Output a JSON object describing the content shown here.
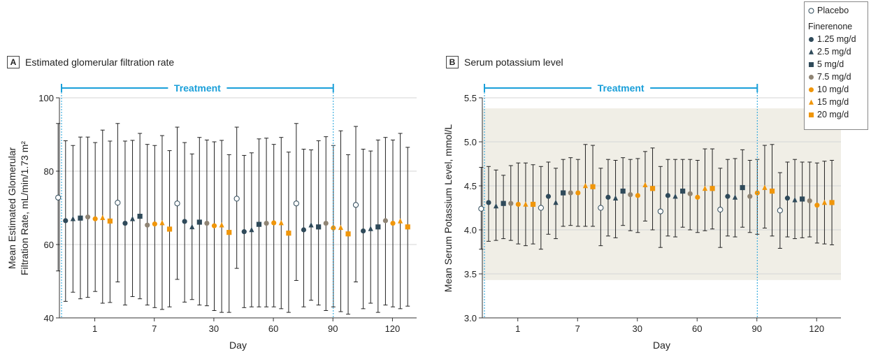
{
  "legend": {
    "placebo": "Placebo",
    "group_title": "Finerenone",
    "items": [
      "1.25 mg/d",
      "2.5 mg/d",
      "5 mg/d",
      "7.5 mg/d",
      "10 mg/d",
      "15 mg/d",
      "20 mg/d"
    ]
  },
  "colors": {
    "placebo": "#ffffff",
    "dark": "#2f4a5a",
    "gray": "#8f8474",
    "orange": "#f0960a",
    "treatment": "#1a9fd9",
    "shade": "#f0eee6"
  },
  "chart_data": [
    {
      "type": "scatter",
      "panel": "A",
      "title": "Estimated glomerular filtration rate",
      "xlabel": "Day",
      "ylabel": "Mean Estimated Glomerular Filtration Rate, mL/min/1.73 m²",
      "ylim": [
        40,
        100
      ],
      "yticks": [
        40,
        60,
        80,
        100
      ],
      "categories": [
        "1",
        "7",
        "30",
        "60",
        "90",
        "120"
      ],
      "treatment_label": "Treatment",
      "grid": true,
      "series": [
        {
          "name": "Placebo",
          "marker": "open-circle",
          "mean": [
            72.8,
            71.4,
            71.2,
            72.5,
            71.2,
            70.8
          ],
          "lower": [
            52.8,
            49.8,
            50.5,
            53.5,
            50.2,
            49.8
          ],
          "upper": [
            93,
            93,
            92,
            92,
            93,
            92.2
          ]
        },
        {
          "name": "1.25 mg/d",
          "marker": "circle",
          "mean": [
            66.5,
            65.8,
            66.3,
            63.5,
            64.0,
            63.7
          ],
          "lower": [
            44.5,
            43.5,
            44.3,
            42.8,
            43.0,
            42.5
          ],
          "upper": [
            88.3,
            88.2,
            87.8,
            84.3,
            86.0,
            86.0
          ]
        },
        {
          "name": "2.5 mg/d",
          "marker": "triangle",
          "mean": [
            67.0,
            67.0,
            64.8,
            64.0,
            65.3,
            64.3
          ],
          "lower": [
            47.0,
            45.8,
            45.0,
            43.0,
            44.8,
            44.0
          ],
          "upper": [
            87.0,
            88.4,
            84.7,
            85.0,
            85.8,
            85.5
          ]
        },
        {
          "name": "5 mg/d",
          "marker": "square",
          "mean": [
            67.2,
            67.7,
            66.1,
            65.5,
            64.8,
            64.8
          ],
          "lower": [
            45.2,
            45.2,
            43.5,
            43.0,
            43.5,
            41.5
          ],
          "upper": [
            89.3,
            90.3,
            89.2,
            88.8,
            88.3,
            88.5
          ]
        },
        {
          "name": "7.5 mg/d",
          "marker": "circle-gray",
          "mean": [
            67.5,
            65.3,
            65.8,
            65.8,
            65.8,
            66.5
          ],
          "lower": [
            45.6,
            43.5,
            43.3,
            43.0,
            42.0,
            43.5
          ],
          "upper": [
            89.3,
            87.3,
            88.5,
            89.0,
            89.4,
            89.2
          ]
        },
        {
          "name": "10 mg/d",
          "marker": "circle-orange",
          "mean": [
            67.0,
            65.6,
            65.1,
            65.9,
            64.5,
            65.8
          ],
          "lower": [
            47.2,
            42.8,
            42.0,
            43.0,
            43.0,
            43.0
          ],
          "upper": [
            87.8,
            87.0,
            88.0,
            87.3,
            87.0,
            88.5
          ]
        },
        {
          "name": "15 mg/d",
          "marker": "triangle-orange",
          "mean": [
            67.3,
            65.9,
            65.3,
            65.9,
            64.6,
            66.4
          ],
          "lower": [
            44.0,
            42.3,
            41.5,
            42.5,
            41.7,
            42.5
          ],
          "upper": [
            91.2,
            89.7,
            88.4,
            89.2,
            91.0,
            90.3
          ]
        },
        {
          "name": "20 mg/d",
          "marker": "square-orange",
          "mean": [
            66.4,
            64.2,
            63.3,
            63.1,
            62.9,
            64.8
          ],
          "lower": [
            44.2,
            43.0,
            41.5,
            41.5,
            41.0,
            43.2
          ],
          "upper": [
            88.2,
            85.6,
            84.5,
            85.2,
            84.5,
            86.5
          ]
        }
      ]
    },
    {
      "type": "scatter",
      "panel": "B",
      "title": "Serum potassium level",
      "xlabel": "Day",
      "ylabel": "Mean Serum Potassium Level, mmol/L",
      "ylim": [
        3.0,
        5.5
      ],
      "yticks": [
        3.0,
        3.5,
        4.0,
        4.5,
        5.0,
        5.5
      ],
      "shaded_range": [
        3.43,
        5.38
      ],
      "categories": [
        "1",
        "7",
        "30",
        "60",
        "90",
        "120"
      ],
      "treatment_label": "Treatment",
      "grid": true,
      "series": [
        {
          "name": "Placebo",
          "marker": "open-circle",
          "mean": [
            4.24,
            4.25,
            4.25,
            4.21,
            4.23,
            4.22
          ],
          "lower": [
            3.78,
            3.78,
            3.82,
            3.8,
            3.8,
            3.79
          ],
          "upper": [
            4.71,
            4.72,
            4.7,
            4.72,
            4.7,
            4.65
          ]
        },
        {
          "name": "1.25 mg/d",
          "marker": "circle",
          "mean": [
            4.31,
            4.38,
            4.37,
            4.39,
            4.38,
            4.36
          ],
          "lower": [
            3.87,
            3.95,
            3.93,
            3.93,
            3.93,
            3.92
          ],
          "upper": [
            4.72,
            4.77,
            4.8,
            4.8,
            4.8,
            4.77
          ]
        },
        {
          "name": "2.5 mg/d",
          "marker": "triangle",
          "mean": [
            4.27,
            4.31,
            4.36,
            4.38,
            4.37,
            4.34
          ],
          "lower": [
            3.88,
            3.9,
            3.91,
            3.92,
            3.92,
            3.9
          ],
          "upper": [
            4.68,
            4.7,
            4.79,
            4.8,
            4.81,
            4.8
          ]
        },
        {
          "name": "5 mg/d",
          "marker": "square",
          "mean": [
            4.3,
            4.42,
            4.44,
            4.44,
            4.48,
            4.35
          ],
          "lower": [
            3.9,
            4.04,
            4.05,
            4.03,
            4.03,
            3.91
          ],
          "upper": [
            4.62,
            4.8,
            4.82,
            4.8,
            4.91,
            4.77
          ]
        },
        {
          "name": "7.5 mg/d",
          "marker": "circle-gray",
          "mean": [
            4.3,
            4.42,
            4.4,
            4.41,
            4.38,
            4.33
          ],
          "lower": [
            3.88,
            4.05,
            3.99,
            4.0,
            3.97,
            3.92
          ],
          "upper": [
            4.73,
            4.82,
            4.8,
            4.8,
            4.79,
            4.77
          ]
        },
        {
          "name": "10 mg/d",
          "marker": "circle-orange",
          "mean": [
            4.29,
            4.42,
            4.39,
            4.37,
            4.42,
            4.28
          ],
          "lower": [
            3.84,
            4.04,
            3.97,
            3.97,
            3.95,
            3.85
          ],
          "upper": [
            4.76,
            4.8,
            4.81,
            4.79,
            4.8,
            4.76
          ]
        },
        {
          "name": "15 mg/d",
          "marker": "triangle-orange",
          "mean": [
            4.29,
            4.5,
            4.51,
            4.47,
            4.48,
            4.31
          ],
          "lower": [
            3.82,
            4.04,
            4.1,
            3.99,
            4.02,
            3.84
          ],
          "upper": [
            4.76,
            4.97,
            4.89,
            4.92,
            4.96,
            4.78
          ]
        },
        {
          "name": "20 mg/d",
          "marker": "square-orange",
          "mean": [
            4.29,
            4.49,
            4.47,
            4.47,
            4.44,
            4.31
          ],
          "lower": [
            3.84,
            4.04,
            4.0,
            4.01,
            3.93,
            3.83
          ],
          "upper": [
            4.74,
            4.96,
            4.93,
            4.92,
            4.97,
            4.79
          ]
        }
      ]
    }
  ]
}
